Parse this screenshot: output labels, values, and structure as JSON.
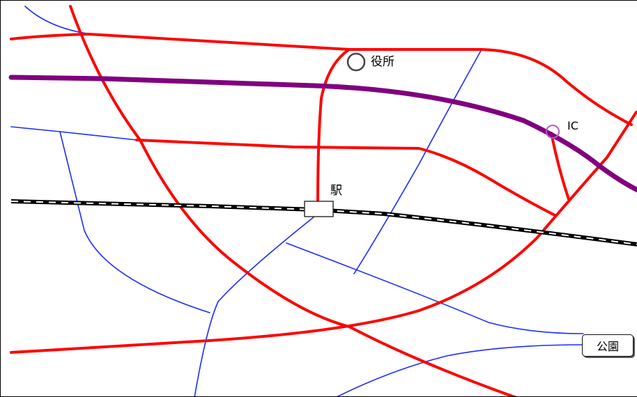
{
  "labels": {
    "city_office": "役所",
    "ic": "IC",
    "station": "駅",
    "park": "公園"
  },
  "colors": {
    "main_road": "#ff0000",
    "expressway": "#800080",
    "minor_road": "#1a2bff",
    "railway": "#000000",
    "background": "#ffffff"
  },
  "icons": {
    "city_office": "circle-icon",
    "interchange": "interchange-icon",
    "station": "station-box-icon"
  }
}
